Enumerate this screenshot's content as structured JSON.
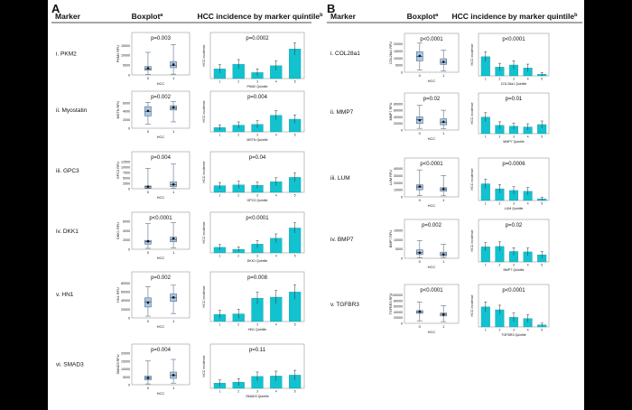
{
  "colors": {
    "background": "#000000",
    "panel": "#ffffff",
    "box": "#a9c7e8",
    "box_stroke": "#5a6f86",
    "bar": "#12c2cf",
    "bar_stroke": "#0a8f99",
    "text": "#111111",
    "frame": "#9a9a9a"
  },
  "panels": [
    {
      "label": "A",
      "header": {
        "marker": "Marker",
        "boxplot": "Boxplot",
        "boxplot_sup": "a",
        "incidence": "HCC incidence by marker quintile",
        "incidence_sup": "b"
      },
      "rows": [
        {
          "marker": "i. PKM2",
          "box_p": "p=0.003",
          "box_ylabel": "PKM2 RFU",
          "box_yticks": [
            "0",
            "5000",
            "10000",
            "15000"
          ],
          "box_ylim": [
            0,
            17000
          ],
          "boxes": [
            {
              "group": "0",
              "q1": 2400,
              "median": 3100,
              "q3": 4300,
              "lo": 300,
              "hi": 11500,
              "mean": 3400
            },
            {
              "group": "1",
              "q1": 3700,
              "median": 4800,
              "q3": 6800,
              "lo": 400,
              "hi": 15500,
              "mean": 5300
            }
          ],
          "bar_p": "p=0.0002",
          "bar_ylabel": "HCC incidence",
          "bar_xlabel": "PKM2 Quintile",
          "bar_categories": [
            "1",
            "2",
            "3",
            "4",
            "5"
          ],
          "bar_values": [
            0.21,
            0.31,
            0.13,
            0.28,
            0.64
          ],
          "bar_err": [
            0.09,
            0.1,
            0.08,
            0.1,
            0.13
          ]
        },
        {
          "marker": "ii. Myostatin",
          "box_p": "p=0.002",
          "box_ylabel": "MSTN RFU",
          "box_yticks": [
            "0",
            "2000",
            "4000",
            "6000"
          ],
          "box_ylim": [
            0,
            6600
          ],
          "boxes": [
            {
              "group": "0",
              "q1": 2900,
              "median": 4000,
              "q3": 5100,
              "lo": 1000,
              "hi": 6100,
              "mean": 4100
            },
            {
              "group": "1",
              "q1": 4300,
              "median": 4700,
              "q3": 5300,
              "lo": 1500,
              "hi": 6300,
              "mean": 4900
            }
          ],
          "bar_p": "p=0.004",
          "bar_ylabel": "HCC incidence",
          "bar_xlabel": "MSTN Quintile",
          "bar_categories": [
            "1",
            "2",
            "3",
            "4",
            "5"
          ],
          "bar_values": [
            0.11,
            0.17,
            0.19,
            0.42,
            0.32
          ],
          "bar_err": [
            0.07,
            0.08,
            0.09,
            0.12,
            0.11
          ]
        },
        {
          "marker": "iii. GPC3",
          "box_p": "p=0.004",
          "box_ylabel": "GPC3 RFU",
          "box_yticks": [
            "0",
            "2500",
            "5000",
            "7500",
            "10000",
            "12500"
          ],
          "box_ylim": [
            0,
            13000
          ],
          "boxes": [
            {
              "group": "0",
              "q1": 300,
              "median": 900,
              "q3": 1300,
              "lo": 100,
              "hi": 9500,
              "mean": 1000
            },
            {
              "group": "1",
              "q1": 1000,
              "median": 1800,
              "q3": 3200,
              "lo": 200,
              "hi": 11500,
              "mean": 2000
            }
          ],
          "bar_p": "p=0.04",
          "bar_ylabel": "HCC incidence",
          "bar_xlabel": "GPC3 Quintile",
          "bar_categories": [
            "1",
            "2",
            "3",
            "4",
            "5"
          ],
          "bar_values": [
            0.17,
            0.19,
            0.18,
            0.27,
            0.38
          ],
          "bar_err": [
            0.08,
            0.09,
            0.08,
            0.1,
            0.11
          ]
        },
        {
          "marker": "iv. DKK1",
          "box_p": "p<0.0001",
          "box_ylabel": "DKK1 RFU",
          "box_yticks": [
            "0",
            "2000",
            "4000",
            "6000"
          ],
          "box_ylim": [
            0,
            6000
          ],
          "boxes": [
            {
              "group": "0",
              "q1": 1100,
              "median": 1600,
              "q3": 1900,
              "lo": 200,
              "hi": 5500,
              "mean": 1700
            },
            {
              "group": "1",
              "q1": 1600,
              "median": 2100,
              "q3": 2600,
              "lo": 300,
              "hi": 5700,
              "mean": 2300
            }
          ],
          "bar_p": "p<0.0001",
          "bar_ylabel": "HCC incidence",
          "bar_xlabel": "DKK1 Quintile",
          "bar_categories": [
            "1",
            "2",
            "3",
            "4",
            "5"
          ],
          "bar_values": [
            0.14,
            0.09,
            0.22,
            0.37,
            0.63
          ],
          "bar_err": [
            0.07,
            0.06,
            0.09,
            0.11,
            0.13
          ]
        },
        {
          "marker": "v. HN1",
          "box_p": "p=0.002",
          "box_ylabel": "HN1 RFU",
          "box_yticks": [
            "0",
            "20000",
            "40000",
            "60000",
            "80000"
          ],
          "box_ylim": [
            0,
            85000
          ],
          "boxes": [
            {
              "group": "0",
              "q1": 25000,
              "median": 37000,
              "q3": 46000,
              "lo": 4000,
              "hi": 72000,
              "mean": 35000
            },
            {
              "group": "1",
              "q1": 38000,
              "median": 46000,
              "q3": 55000,
              "lo": 10000,
              "hi": 75000,
              "mean": 47000
            }
          ],
          "bar_p": "p=0.008",
          "bar_ylabel": "HCC incidence",
          "bar_xlabel": "HN1 Quintile",
          "bar_categories": [
            "1",
            "2",
            "3",
            "4",
            "5"
          ],
          "bar_values": [
            0.14,
            0.15,
            0.46,
            0.48,
            0.58
          ],
          "bar_err": [
            0.08,
            0.09,
            0.12,
            0.13,
            0.14
          ]
        },
        {
          "marker": "vi. SMAD3",
          "box_p": "p=0.004",
          "box_ylabel": "SMAD3 RFU",
          "box_yticks": [
            "0",
            "5000",
            "10000",
            "15000",
            "20000"
          ],
          "box_ylim": [
            0,
            20000
          ],
          "boxes": [
            {
              "group": "0",
              "q1": 3000,
              "median": 4200,
              "q3": 5500,
              "lo": 500,
              "hi": 15000,
              "mean": 4300
            },
            {
              "group": "1",
              "q1": 4000,
              "median": 5800,
              "q3": 8000,
              "lo": 1000,
              "hi": 16000,
              "mean": 6100
            }
          ],
          "bar_p": "p=0.11",
          "bar_ylabel": "HCC incidence",
          "bar_xlabel": "SMAD3 Quintile",
          "bar_categories": [
            "1",
            "2",
            "3",
            "4",
            "5"
          ],
          "bar_values": [
            0.12,
            0.14,
            0.27,
            0.28,
            0.3
          ],
          "bar_err": [
            0.07,
            0.08,
            0.1,
            0.11,
            0.11
          ]
        }
      ]
    },
    {
      "label": "B",
      "header": {
        "marker": "Marker",
        "boxplot": "Boxplot",
        "boxplot_sup": "a",
        "incidence": "HCC incidence by marker quintile",
        "incidence_sup": "b"
      },
      "rows": [
        {
          "marker": "i. COL28a1",
          "box_p": "p<0.0001",
          "box_ylabel": "COL28a1 RFU",
          "box_yticks": [
            "0",
            "5000",
            "10000",
            "15000",
            "20000"
          ],
          "box_ylim": [
            0,
            21000
          ],
          "boxes": [
            {
              "group": "0",
              "q1": 8000,
              "median": 11000,
              "q3": 14500,
              "lo": 1500,
              "hi": 20500,
              "mean": 11500
            },
            {
              "group": "1",
              "q1": 5500,
              "median": 7000,
              "q3": 9500,
              "lo": 1000,
              "hi": 15500,
              "mean": 7300
            }
          ],
          "bar_p": "p<0.0001",
          "bar_ylabel": "HCC incidence",
          "bar_xlabel": "COL28a1 Quintile",
          "bar_categories": [
            "1",
            "2",
            "3",
            "4",
            "5"
          ],
          "bar_values": [
            0.46,
            0.21,
            0.26,
            0.19,
            0.04
          ],
          "bar_err": [
            0.12,
            0.09,
            0.1,
            0.09,
            0.04
          ]
        },
        {
          "marker": "ii. MMP7",
          "box_p": "p=0.02",
          "box_ylabel": "MMP7 RFU",
          "box_yticks": [
            "0",
            "20000",
            "40000",
            "60000",
            "80000"
          ],
          "box_ylim": [
            0,
            85000
          ],
          "boxes": [
            {
              "group": "0",
              "q1": 20000,
              "median": 32000,
              "q3": 40000,
              "lo": 5000,
              "hi": 75000,
              "mean": 30000
            },
            {
              "group": "1",
              "q1": 16000,
              "median": 24000,
              "q3": 34000,
              "lo": 4000,
              "hi": 60000,
              "mean": 25000
            }
          ],
          "bar_p": "p=0.01",
          "bar_ylabel": "HCC incidence",
          "bar_xlabel": "MMP7 Quintile",
          "bar_categories": [
            "1",
            "2",
            "3",
            "4",
            "5"
          ],
          "bar_values": [
            0.42,
            0.21,
            0.19,
            0.17,
            0.23
          ],
          "bar_err": [
            0.11,
            0.09,
            0.08,
            0.08,
            0.09
          ]
        },
        {
          "marker": "iii. LUM",
          "box_p": "p<0.0001",
          "box_ylabel": "LUM RFU",
          "box_yticks": [
            "0",
            "10000",
            "20000",
            "30000",
            "40000"
          ],
          "box_ylim": [
            0,
            42000
          ],
          "boxes": [
            {
              "group": "0",
              "q1": 10000,
              "median": 14000,
              "q3": 17000,
              "lo": 2000,
              "hi": 38000,
              "mean": 14500
            },
            {
              "group": "1",
              "q1": 8000,
              "median": 11000,
              "q3": 13000,
              "lo": 1500,
              "hi": 30000,
              "mean": 11000
            }
          ],
          "bar_p": "p=0.0006",
          "bar_ylabel": "HCC incidence",
          "bar_xlabel": "LUM Quintile",
          "bar_categories": [
            "1",
            "2",
            "3",
            "4",
            "5"
          ],
          "bar_values": [
            0.4,
            0.28,
            0.24,
            0.22,
            0.04
          ],
          "bar_err": [
            0.11,
            0.1,
            0.09,
            0.09,
            0.04
          ]
        },
        {
          "marker": "iv. BMP7",
          "box_p": "p=0.002",
          "box_ylabel": "BMP7 RFU",
          "box_yticks": [
            "0",
            "5000",
            "10000",
            "15000"
          ],
          "box_ylim": [
            0,
            16000
          ],
          "boxes": [
            {
              "group": "0",
              "q1": 2000,
              "median": 3000,
              "q3": 4500,
              "lo": 300,
              "hi": 9500,
              "mean": 3000
            },
            {
              "group": "1",
              "q1": 1300,
              "median": 2000,
              "q3": 3300,
              "lo": 200,
              "hi": 7500,
              "mean": 2100
            }
          ],
          "bar_p": "p=0.02",
          "bar_ylabel": "HCC incidence",
          "bar_xlabel": "BMP7 Quintile",
          "bar_categories": [
            "1",
            "2",
            "3",
            "4",
            "5"
          ],
          "bar_values": [
            0.36,
            0.37,
            0.25,
            0.24,
            0.17
          ],
          "bar_err": [
            0.1,
            0.11,
            0.09,
            0.09,
            0.08
          ]
        },
        {
          "marker": "v. TGFBR3",
          "box_p": "p<0.0001",
          "box_ylabel": "TGFBR3 RFU",
          "box_yticks": [
            "0",
            "20000",
            "40000",
            "60000",
            "80000",
            "100000"
          ],
          "box_ylim": [
            0,
            105000
          ],
          "boxes": [
            {
              "group": "0",
              "q1": 35000,
              "median": 40000,
              "q3": 45000,
              "lo": 8000,
              "hi": 75000,
              "mean": 41000
            },
            {
              "group": "1",
              "q1": 26000,
              "median": 32000,
              "q3": 36000,
              "lo": 6000,
              "hi": 62000,
              "mean": 31000
            }
          ],
          "bar_p": "p<0.0001",
          "bar_ylabel": "HCC incidence",
          "bar_xlabel": "TGFBR3 Quintile",
          "bar_categories": [
            "1",
            "2",
            "3",
            "4",
            "5"
          ],
          "bar_values": [
            0.48,
            0.41,
            0.23,
            0.2,
            0.05
          ],
          "bar_err": [
            0.12,
            0.11,
            0.1,
            0.09,
            0.04
          ]
        }
      ]
    }
  ],
  "box_xlabel": "HCC",
  "chart_data": [
    {
      "type": "box",
      "panel": "A",
      "marker": "PKM2",
      "groups": [
        "0",
        "1"
      ],
      "p": "p=0.003"
    },
    {
      "type": "bar",
      "panel": "A",
      "marker": "PKM2",
      "categories": [
        "1",
        "2",
        "3",
        "4",
        "5"
      ],
      "values": [
        0.21,
        0.31,
        0.13,
        0.28,
        0.64
      ],
      "p": "p=0.0002"
    },
    {
      "type": "bar",
      "panel": "A",
      "marker": "Myostatin",
      "categories": [
        "1",
        "2",
        "3",
        "4",
        "5"
      ],
      "values": [
        0.11,
        0.17,
        0.19,
        0.42,
        0.32
      ],
      "p": "p=0.004"
    },
    {
      "type": "bar",
      "panel": "A",
      "marker": "GPC3",
      "categories": [
        "1",
        "2",
        "3",
        "4",
        "5"
      ],
      "values": [
        0.17,
        0.19,
        0.18,
        0.27,
        0.38
      ],
      "p": "p=0.04"
    },
    {
      "type": "bar",
      "panel": "A",
      "marker": "DKK1",
      "categories": [
        "1",
        "2",
        "3",
        "4",
        "5"
      ],
      "values": [
        0.14,
        0.09,
        0.22,
        0.37,
        0.63
      ],
      "p": "p<0.0001"
    },
    {
      "type": "bar",
      "panel": "A",
      "marker": "HN1",
      "categories": [
        "1",
        "2",
        "3",
        "4",
        "5"
      ],
      "values": [
        0.14,
        0.15,
        0.46,
        0.48,
        0.58
      ],
      "p": "p=0.008"
    },
    {
      "type": "bar",
      "panel": "A",
      "marker": "SMAD3",
      "categories": [
        "1",
        "2",
        "3",
        "4",
        "5"
      ],
      "values": [
        0.12,
        0.14,
        0.27,
        0.28,
        0.3
      ],
      "p": "p=0.11"
    },
    {
      "type": "bar",
      "panel": "B",
      "marker": "COL28a1",
      "categories": [
        "1",
        "2",
        "3",
        "4",
        "5"
      ],
      "values": [
        0.46,
        0.21,
        0.26,
        0.19,
        0.04
      ],
      "p": "p<0.0001"
    },
    {
      "type": "bar",
      "panel": "B",
      "marker": "MMP7",
      "categories": [
        "1",
        "2",
        "3",
        "4",
        "5"
      ],
      "values": [
        0.42,
        0.21,
        0.19,
        0.17,
        0.23
      ],
      "p": "p=0.01"
    },
    {
      "type": "bar",
      "panel": "B",
      "marker": "LUM",
      "categories": [
        "1",
        "2",
        "3",
        "4",
        "5"
      ],
      "values": [
        0.4,
        0.28,
        0.24,
        0.22,
        0.04
      ],
      "p": "p=0.0006"
    },
    {
      "type": "bar",
      "panel": "B",
      "marker": "BMP7",
      "categories": [
        "1",
        "2",
        "3",
        "4",
        "5"
      ],
      "values": [
        0.36,
        0.37,
        0.25,
        0.24,
        0.17
      ],
      "p": "p=0.02"
    },
    {
      "type": "bar",
      "panel": "B",
      "marker": "TGFBR3",
      "categories": [
        "1",
        "2",
        "3",
        "4",
        "5"
      ],
      "values": [
        0.48,
        0.41,
        0.23,
        0.2,
        0.05
      ],
      "p": "p<0.0001"
    }
  ]
}
